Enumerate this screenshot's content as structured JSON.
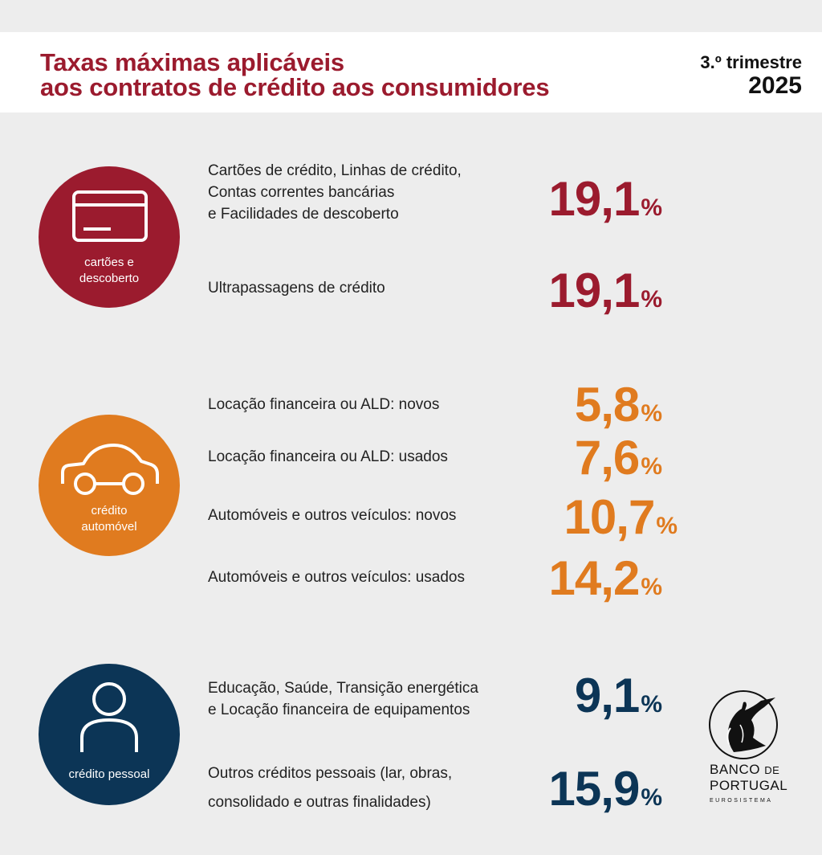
{
  "header": {
    "title_line1": "Taxas máximas aplicáveis",
    "title_line2": "aos contratos de crédito aos consumidores",
    "period": "3.º trimestre",
    "year": "2025"
  },
  "colors": {
    "red": "#9b1b2e",
    "orange": "#e07b1f",
    "blue": "#0c3556"
  },
  "categories": [
    {
      "icon": "credit-card-icon",
      "label_line1": "cartões e",
      "label_line2": "descoberto",
      "items": [
        {
          "desc_lines": [
            "Cartões de crédito, Linhas de crédito,",
            "Contas correntes bancárias",
            "e Facilidades de descoberto"
          ],
          "rate": "19,1",
          "unit": "%"
        },
        {
          "desc_lines": [
            "Ultrapassagens de crédito"
          ],
          "rate": "19,1",
          "unit": "%"
        }
      ]
    },
    {
      "icon": "car-icon",
      "label_line1": "crédito",
      "label_line2": "automóvel",
      "items": [
        {
          "desc_lines": [
            "Locação financeira ou ALD: novos"
          ],
          "rate": "5,8",
          "unit": "%"
        },
        {
          "desc_lines": [
            "Locação financeira ou ALD: usados"
          ],
          "rate": "7,6",
          "unit": "%"
        },
        {
          "desc_lines": [
            "Automóveis e outros veículos: novos"
          ],
          "rate": "10,7",
          "unit": "%"
        },
        {
          "desc_lines": [
            "Automóveis e outros veículos: usados"
          ],
          "rate": "14,2",
          "unit": "%"
        }
      ]
    },
    {
      "icon": "person-icon",
      "label_line1": "crédito pessoal",
      "items": [
        {
          "desc_lines": [
            "Educação, Saúde, Transição energética",
            "e Locação financeira de equipamentos"
          ],
          "rate": "9,1",
          "unit": "%"
        },
        {
          "desc_lines": [
            "Outros créditos pessoais (lar, obras,",
            "consolidado e outras finalidades)"
          ],
          "rate": "15,9",
          "unit": "%"
        }
      ]
    }
  ],
  "logo": {
    "line1_main": "BANCO",
    "line1_small": "DE",
    "line2": "PORTUGAL",
    "line3": "EUROSISTEMA"
  }
}
